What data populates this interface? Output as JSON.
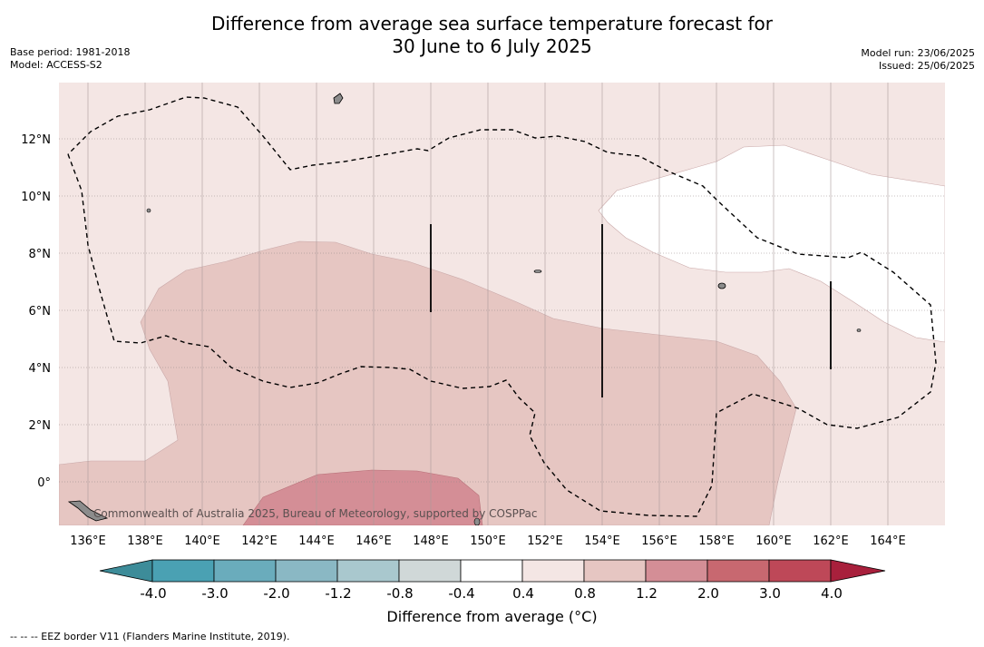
{
  "title": {
    "line1": "Difference from average sea surface temperature forecast for",
    "line2": "30 June to 6 July 2025"
  },
  "meta_left": {
    "base_period": "Base period: 1981-2018",
    "model": "Model: ACCESS-S2"
  },
  "meta_right": {
    "model_run": "Model run: 23/06/2025",
    "issued": "Issued: 25/06/2025"
  },
  "map": {
    "lon_labels": [
      "136°E",
      "138°E",
      "140°E",
      "142°E",
      "144°E",
      "146°E",
      "148°E",
      "150°E",
      "152°E",
      "154°E",
      "156°E",
      "158°E",
      "160°E",
      "162°E",
      "164°E"
    ],
    "lat_labels": [
      "12°N",
      "10°N",
      "8°N",
      "6°N",
      "4°N",
      "2°N",
      "0°"
    ],
    "credit": "Commonwealth of Australia 2025, Bureau of Meteorology, supported by COSPPac"
  },
  "colorbar": {
    "title": "Difference from average (°C)",
    "tick_labels": [
      "-4.0",
      "-3.0",
      "-2.0",
      "-1.2",
      "-0.8",
      "-0.4",
      "0.4",
      "0.8",
      "1.2",
      "2.0",
      "3.0",
      "4.0"
    ],
    "colors": [
      "#3d8c99",
      "#4aa1b3",
      "#6aacbc",
      "#8ab8c4",
      "#a9c8ce",
      "#d0d8d8",
      "#ffffff",
      "#f4e6e4",
      "#e6c6c2",
      "#d48e96",
      "#c86870",
      "#be4858",
      "#a8203c"
    ]
  },
  "footnote": "--  --  -- EEZ border V11 (Flanders Marine Institute, 2019)."
}
